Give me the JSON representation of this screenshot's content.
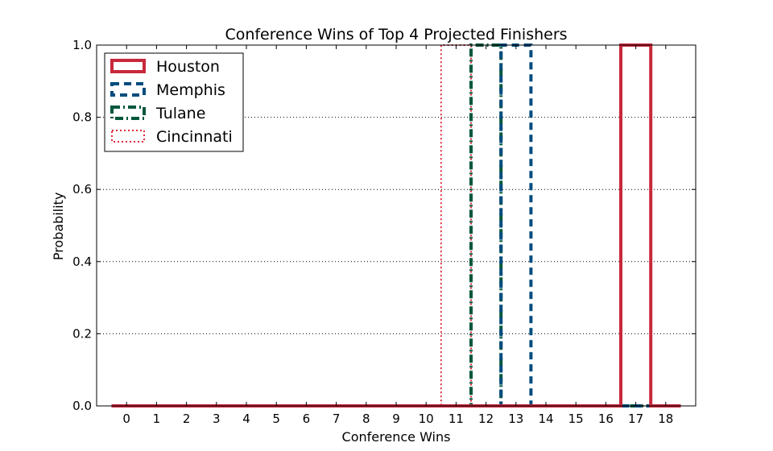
{
  "chart_data": {
    "type": "histogram-step",
    "title": "Conference Wins of Top 4 Projected Finishers",
    "xlabel": "Conference Wins",
    "ylabel": "Probability",
    "xlim": [
      -1,
      19
    ],
    "ylim": [
      0,
      1
    ],
    "x_ticks": [
      "0",
      "1",
      "2",
      "3",
      "4",
      "5",
      "6",
      "7",
      "8",
      "9",
      "10",
      "11",
      "12",
      "13",
      "14",
      "15",
      "16",
      "17",
      "18"
    ],
    "y_ticks": [
      "0.0",
      "0.2",
      "0.4",
      "0.6",
      "0.8",
      "1.0"
    ],
    "grid": "horizontal-dotted",
    "legend_position": "top-left",
    "series": [
      {
        "name": "Houston",
        "color": "#c8283c",
        "style": "solid",
        "bin_start": 16.5,
        "bin_end": 17.5,
        "probability": 1.0
      },
      {
        "name": "Memphis",
        "color": "#004c7e",
        "style": "dashed",
        "bin_start": 12.5,
        "bin_end": 13.5,
        "probability": 1.0
      },
      {
        "name": "Tulane",
        "color": "#00573c",
        "style": "dashdot",
        "bin_start": 11.5,
        "bin_end": 12.5,
        "probability": 1.0
      },
      {
        "name": "Cincinnati",
        "color": "#e0283c",
        "style": "dotted",
        "bin_start": 10.5,
        "bin_end": 11.5,
        "probability": 1.0
      }
    ]
  }
}
